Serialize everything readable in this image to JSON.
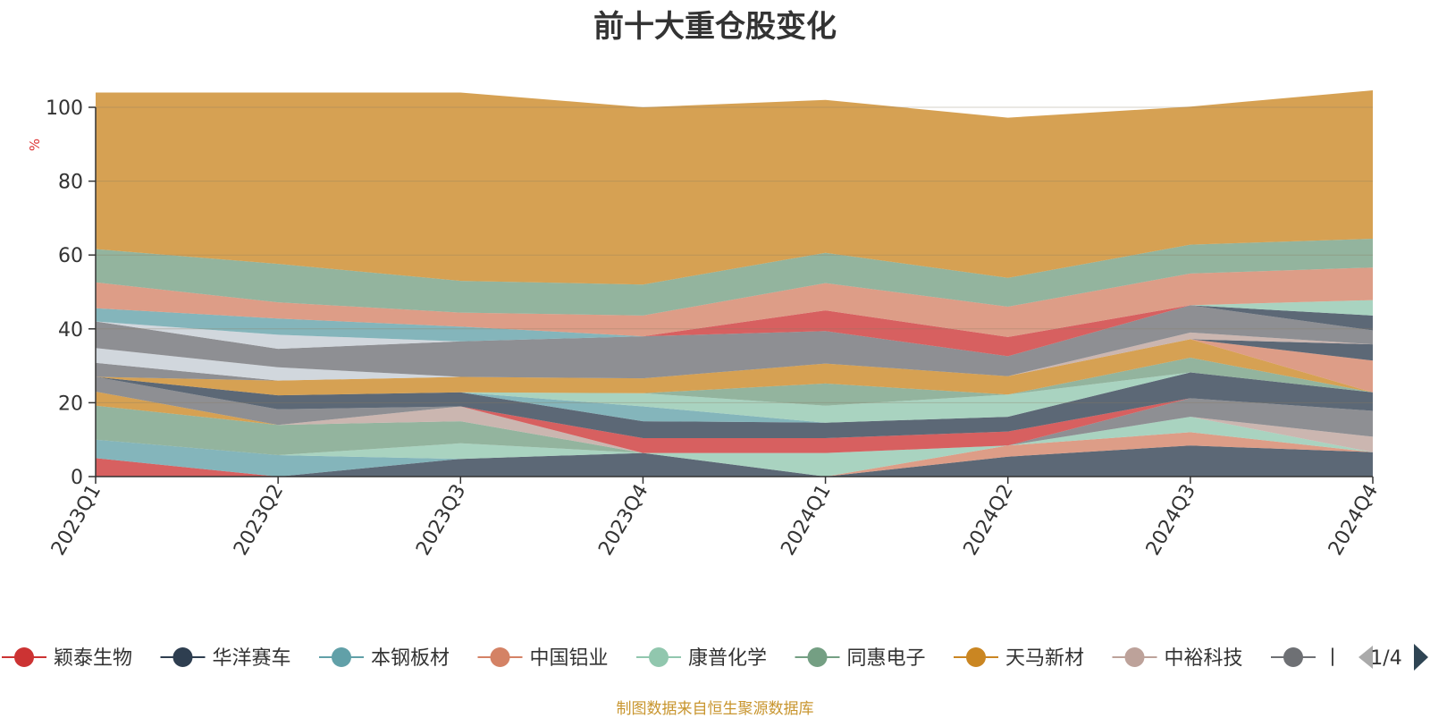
{
  "chart_data": {
    "type": "area",
    "stacked": true,
    "title": "前十大重仓股变化",
    "ylabel": "%",
    "ylim": [
      0,
      100
    ],
    "yticks": [
      0,
      20,
      40,
      60,
      80,
      100
    ],
    "categories": [
      "2023Q1",
      "2023Q2",
      "2023Q3",
      "2023Q4",
      "2024Q1",
      "2024Q2",
      "2024Q3",
      "2024Q4"
    ],
    "grid": true,
    "series": [
      {
        "name": "颖泰生物",
        "color": "#cc3333",
        "values": [
          5.0,
          0.0,
          0.0,
          0.0,
          0.0,
          0.0,
          0.0,
          0.0
        ]
      },
      {
        "name": "华洋赛车",
        "color": "#2e3e50",
        "values": [
          0.0,
          0.0,
          4.8,
          6.4,
          0.0,
          5.4,
          8.4,
          6.6
        ]
      },
      {
        "name": "本钢板材",
        "color": "#61a0a8",
        "values": [
          5.0,
          5.8,
          0.0,
          0.0,
          0.0,
          0.0,
          0.0,
          0.0
        ]
      },
      {
        "name": "中国铝业",
        "color": "#d48265",
        "values": [
          0.0,
          0.0,
          0.0,
          0.0,
          0.0,
          3.0,
          3.6,
          0.0
        ]
      },
      {
        "name": "康普化学",
        "color": "#91c7ae",
        "values": [
          0.0,
          0.0,
          4.2,
          0.0,
          6.4,
          0.0,
          4.2,
          0.0
        ]
      },
      {
        "name": "同惠电子",
        "color": "#749f83",
        "values": [
          9.2,
          8.2,
          6.0,
          0.0,
          0.0,
          0.0,
          0.0,
          0.0
        ]
      },
      {
        "name": "天马新材",
        "color": "#ca8622",
        "values": [
          3.8,
          0.0,
          0.0,
          0.0,
          0.0,
          0.0,
          0.0,
          0.0
        ]
      },
      {
        "name": "中裕科技",
        "color": "#bda29a",
        "values": [
          0.0,
          0.0,
          4.0,
          0.0,
          0.0,
          0.0,
          0.0,
          4.2
        ]
      },
      {
        "name": "",
        "color": "#6e7074",
        "values": [
          4.0,
          4.2,
          0.0,
          0.0,
          0.0,
          0.0,
          5.0,
          7.0
        ]
      },
      {
        "name": "",
        "color": "#cc3333",
        "values": [
          0.0,
          0.0,
          0.0,
          4.0,
          4.0,
          3.8,
          0.0,
          0.0
        ]
      },
      {
        "name": "",
        "color": "#2e3e50",
        "values": [
          0.0,
          3.8,
          3.8,
          4.6,
          4.2,
          4.0,
          7.0,
          5.0
        ]
      },
      {
        "name": "",
        "color": "#61a0a8",
        "values": [
          0.0,
          0.0,
          0.0,
          4.0,
          0.0,
          0.0,
          0.0,
          0.0
        ]
      },
      {
        "name": "",
        "color": "#91c7ae",
        "values": [
          0.0,
          0.0,
          0.0,
          3.6,
          4.6,
          6.0,
          0.0,
          0.0
        ]
      },
      {
        "name": "",
        "color": "#749f83",
        "values": [
          0.0,
          0.0,
          0.0,
          0.0,
          6.0,
          0.0,
          4.0,
          0.0
        ]
      },
      {
        "name": "",
        "color": "#ca8622",
        "values": [
          0.0,
          4.0,
          4.2,
          4.0,
          5.4,
          5.0,
          5.0,
          0.0
        ]
      },
      {
        "name": "",
        "color": "#d48265",
        "values": [
          0.0,
          0.0,
          0.0,
          0.0,
          0.0,
          0.0,
          0.0,
          8.6
        ]
      },
      {
        "name": "",
        "color": "#6e7074",
        "values": [
          3.8,
          0.0,
          0.0,
          0.0,
          0.0,
          0.0,
          0.0,
          0.0
        ]
      },
      {
        "name": "",
        "color": "#c4ccd3",
        "values": [
          4.0,
          3.6,
          0.0,
          0.0,
          0.0,
          0.0,
          0.0,
          0.0
        ]
      },
      {
        "name": "",
        "color": "#2e3e50",
        "values": [
          0.0,
          0.0,
          0.0,
          0.0,
          0.0,
          0.0,
          0.0,
          4.4
        ]
      },
      {
        "name": "",
        "color": "#bda29a",
        "values": [
          0.0,
          0.0,
          0.0,
          0.0,
          0.0,
          0.0,
          1.8,
          0.0
        ]
      },
      {
        "name": "",
        "color": "#6e7074",
        "values": [
          7.2,
          5.0,
          9.6,
          11.4,
          8.8,
          5.4,
          7.4,
          3.8
        ]
      },
      {
        "name": "",
        "color": "#c4ccd3",
        "values": [
          0.0,
          3.8,
          0.0,
          0.0,
          0.0,
          0.0,
          0.0,
          0.0
        ]
      },
      {
        "name": "",
        "color": "#2e3e50",
        "values": [
          0.0,
          0.0,
          0.0,
          0.0,
          0.0,
          0.0,
          0.0,
          4.0
        ]
      },
      {
        "name": "",
        "color": "#61a0a8",
        "values": [
          3.6,
          4.4,
          4.0,
          0.0,
          0.0,
          0.0,
          0.0,
          0.0
        ]
      },
      {
        "name": "",
        "color": "#cc3333",
        "values": [
          0.0,
          0.0,
          0.0,
          0.0,
          5.6,
          5.2,
          0.0,
          0.0
        ]
      },
      {
        "name": "",
        "color": "#91c7ae",
        "values": [
          0.0,
          0.0,
          0.0,
          0.0,
          0.0,
          0.0,
          0.0,
          4.2
        ]
      },
      {
        "name": "",
        "color": "#d48265",
        "values": [
          7.0,
          4.4,
          3.8,
          5.6,
          7.4,
          8.2,
          8.6,
          8.8
        ]
      },
      {
        "name": "",
        "color": "#749f83",
        "values": [
          9.0,
          10.4,
          8.6,
          8.4,
          8.2,
          7.8,
          7.8,
          7.8
        ]
      },
      {
        "name": "",
        "color": "#ca8622",
        "values": [
          42.4,
          46.4,
          51.0,
          48.0,
          41.4,
          43.4,
          37.4,
          40.2
        ]
      }
    ]
  },
  "legend": {
    "items": [
      "颖泰生物",
      "华洋赛车",
      "本钢板材",
      "中国铝业",
      "康普化学",
      "同惠电子",
      "天马新材",
      "中裕科技",
      "丨"
    ],
    "page": "1/4"
  },
  "source": "制图数据来自恒生聚源数据库"
}
